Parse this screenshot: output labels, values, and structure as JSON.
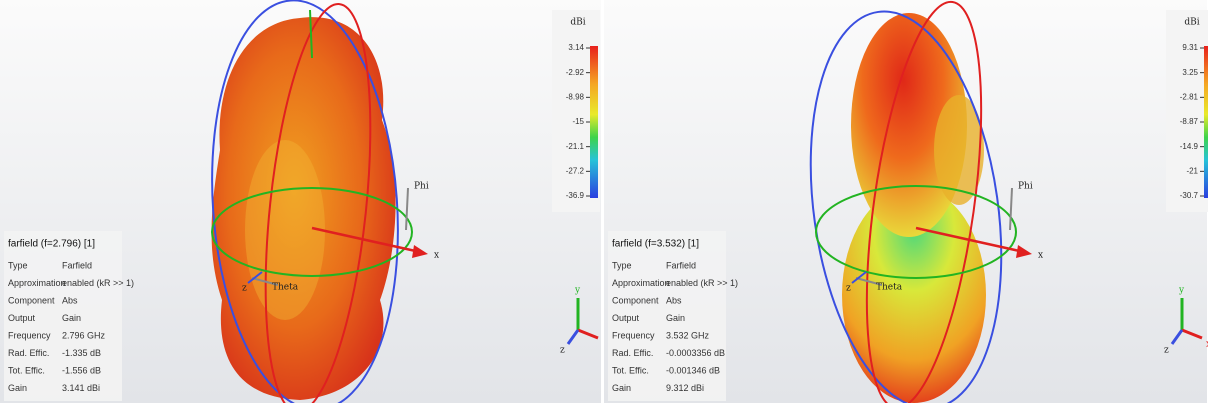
{
  "panels": [
    {
      "title": "farfield (f=2.796) [1]",
      "info": [
        [
          "Type",
          "Farfield"
        ],
        [
          "Approximation",
          "enabled (kR >> 1)"
        ],
        [
          "Component",
          "Abs"
        ],
        [
          "Output",
          "Gain"
        ],
        [
          "Frequency",
          "2.796 GHz"
        ],
        [
          "Rad. Effic.",
          "-1.335 dB"
        ],
        [
          "Tot. Effic.",
          "-1.556 dB"
        ],
        [
          "Gain",
          "3.141 dBi"
        ]
      ],
      "colorbar": {
        "unit": "dBi",
        "ticks": [
          "3.14",
          "-2.92",
          "-8.98",
          "-15",
          "-21.1",
          "-27.2",
          "-36.9"
        ]
      },
      "labels": {
        "phi": "Phi",
        "theta": "Theta",
        "x": "x",
        "z": "z"
      },
      "triad": {
        "x": "x",
        "y": "y",
        "z": "z"
      }
    },
    {
      "title": "farfield (f=3.532) [1]",
      "info": [
        [
          "Type",
          "Farfield"
        ],
        [
          "Approximation",
          "enabled (kR >> 1)"
        ],
        [
          "Component",
          "Abs"
        ],
        [
          "Output",
          "Gain"
        ],
        [
          "Frequency",
          "3.532 GHz"
        ],
        [
          "Rad. Effic.",
          "-0.0003356 dB"
        ],
        [
          "Tot. Effic.",
          "-0.001346 dB"
        ],
        [
          "Gain",
          "9.312 dBi"
        ]
      ],
      "colorbar": {
        "unit": "dBi",
        "ticks": [
          "9.31",
          "3.25",
          "-2.81",
          "-8.87",
          "-14.9",
          "-21",
          "-30.7"
        ]
      },
      "labels": {
        "phi": "Phi",
        "theta": "Theta",
        "x": "x",
        "z": "z"
      },
      "triad": {
        "x": "x",
        "y": "y",
        "z": "z"
      }
    }
  ]
}
